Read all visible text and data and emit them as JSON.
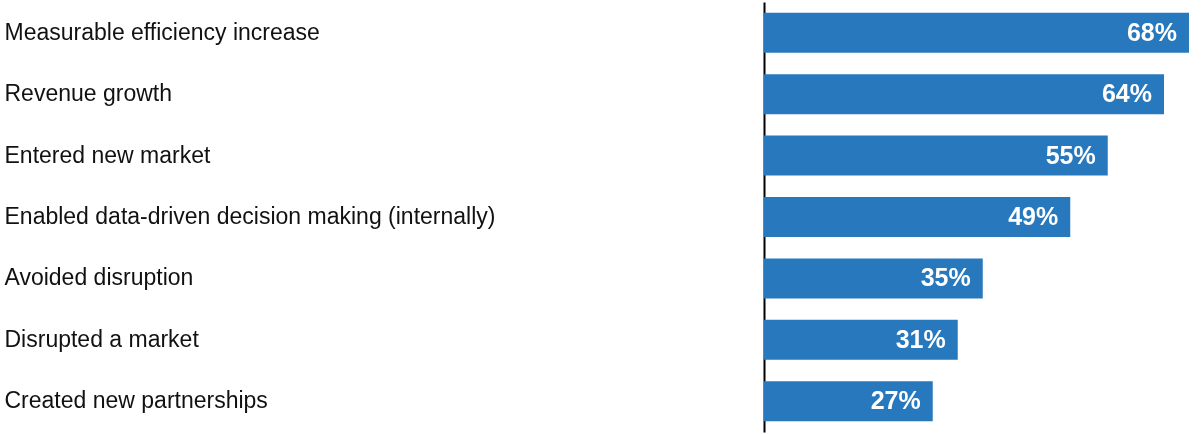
{
  "chart_data": {
    "type": "bar",
    "orientation": "horizontal",
    "categories": [
      "Measurable efficiency increase",
      "Revenue growth",
      "Entered new market",
      "Enabled data-driven decision making (internally)",
      "Avoided disruption",
      "Disrupted a market",
      "Created new partnerships"
    ],
    "values": [
      68,
      64,
      55,
      49,
      35,
      31,
      27
    ],
    "value_labels": [
      "68%",
      "64%",
      "55%",
      "49%",
      "35%",
      "31%",
      "27%"
    ],
    "color": "#2878bd"
  }
}
